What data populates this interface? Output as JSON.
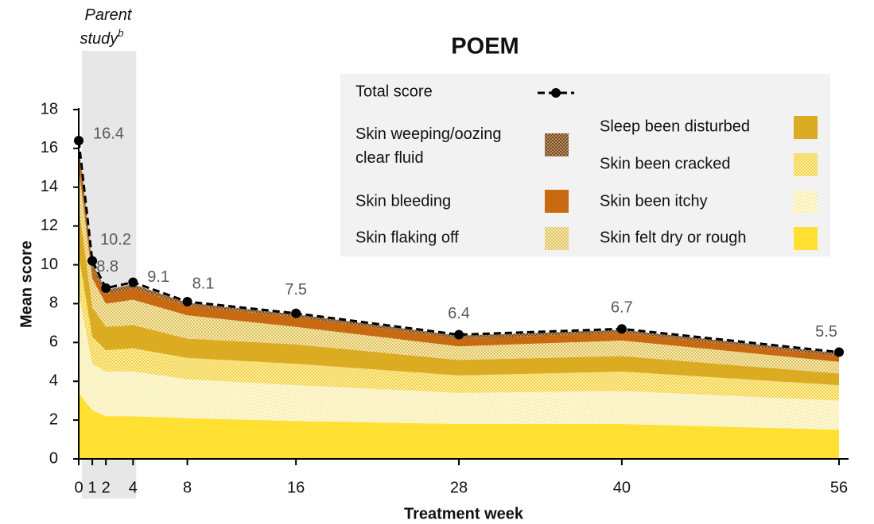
{
  "chart_data": {
    "type": "stacked-area",
    "title": "POEM",
    "x_label": "Treatment week",
    "y_label": "Mean score",
    "highlight": {
      "label": "Parent study",
      "superscript": "b",
      "x": [
        0,
        4
      ]
    },
    "x": [
      0,
      1,
      2,
      4,
      8,
      16,
      28,
      40,
      56
    ],
    "xlim": [
      0,
      56.7
    ],
    "xticks": [
      0,
      1,
      2,
      4,
      8,
      16,
      28,
      40,
      56
    ],
    "ylim": [
      0,
      18
    ],
    "yticks": [
      0,
      2,
      4,
      6,
      8,
      10,
      12,
      14,
      16,
      18
    ],
    "series": [
      {
        "name": "Skin felt dry or rough",
        "color": "#ffe033",
        "pattern": "solid",
        "values": [
          3.4,
          2.5,
          2.2,
          2.2,
          2.1,
          1.95,
          1.8,
          1.8,
          1.5
        ]
      },
      {
        "name": "Skin been itchy",
        "color": "#f3d64a",
        "pattern": "speckle",
        "values": [
          5.1,
          2.4,
          2.3,
          2.3,
          2.0,
          1.85,
          1.6,
          1.7,
          1.5
        ]
      },
      {
        "name": "Skin been cracked",
        "color": "#f2cc2a",
        "pattern": "crosshatch",
        "values": [
          2.0,
          1.4,
          1.1,
          1.2,
          1.1,
          1.1,
          0.9,
          1.0,
          0.8
        ]
      },
      {
        "name": "Sleep been disturbed",
        "color": "#dbab22",
        "pattern": "solid",
        "values": [
          2.5,
          1.5,
          1.2,
          1.2,
          1.0,
          1.0,
          0.8,
          0.8,
          0.6
        ]
      },
      {
        "name": "Skin flaking off",
        "color": "#d9b94d",
        "pattern": "crosshatch",
        "values": [
          2.0,
          1.5,
          1.2,
          1.3,
          1.2,
          0.9,
          0.7,
          0.8,
          0.6
        ]
      },
      {
        "name": "Skin bleeding",
        "color": "#c76a12",
        "pattern": "solid",
        "values": [
          0.8,
          0.5,
          0.5,
          0.6,
          0.5,
          0.5,
          0.4,
          0.4,
          0.3
        ]
      },
      {
        "name": "Skin weeping/oozing clear fluid",
        "color": "#7a4a1c",
        "pattern": "dots",
        "values": [
          0.4,
          0.3,
          0.2,
          0.2,
          0.15,
          0.15,
          0.15,
          0.15,
          0.15
        ]
      }
    ],
    "total": {
      "name": "Total score",
      "color": "#000000",
      "values": [
        16.4,
        10.2,
        8.8,
        9.1,
        8.1,
        7.5,
        6.4,
        6.7,
        5.5
      ]
    }
  }
}
